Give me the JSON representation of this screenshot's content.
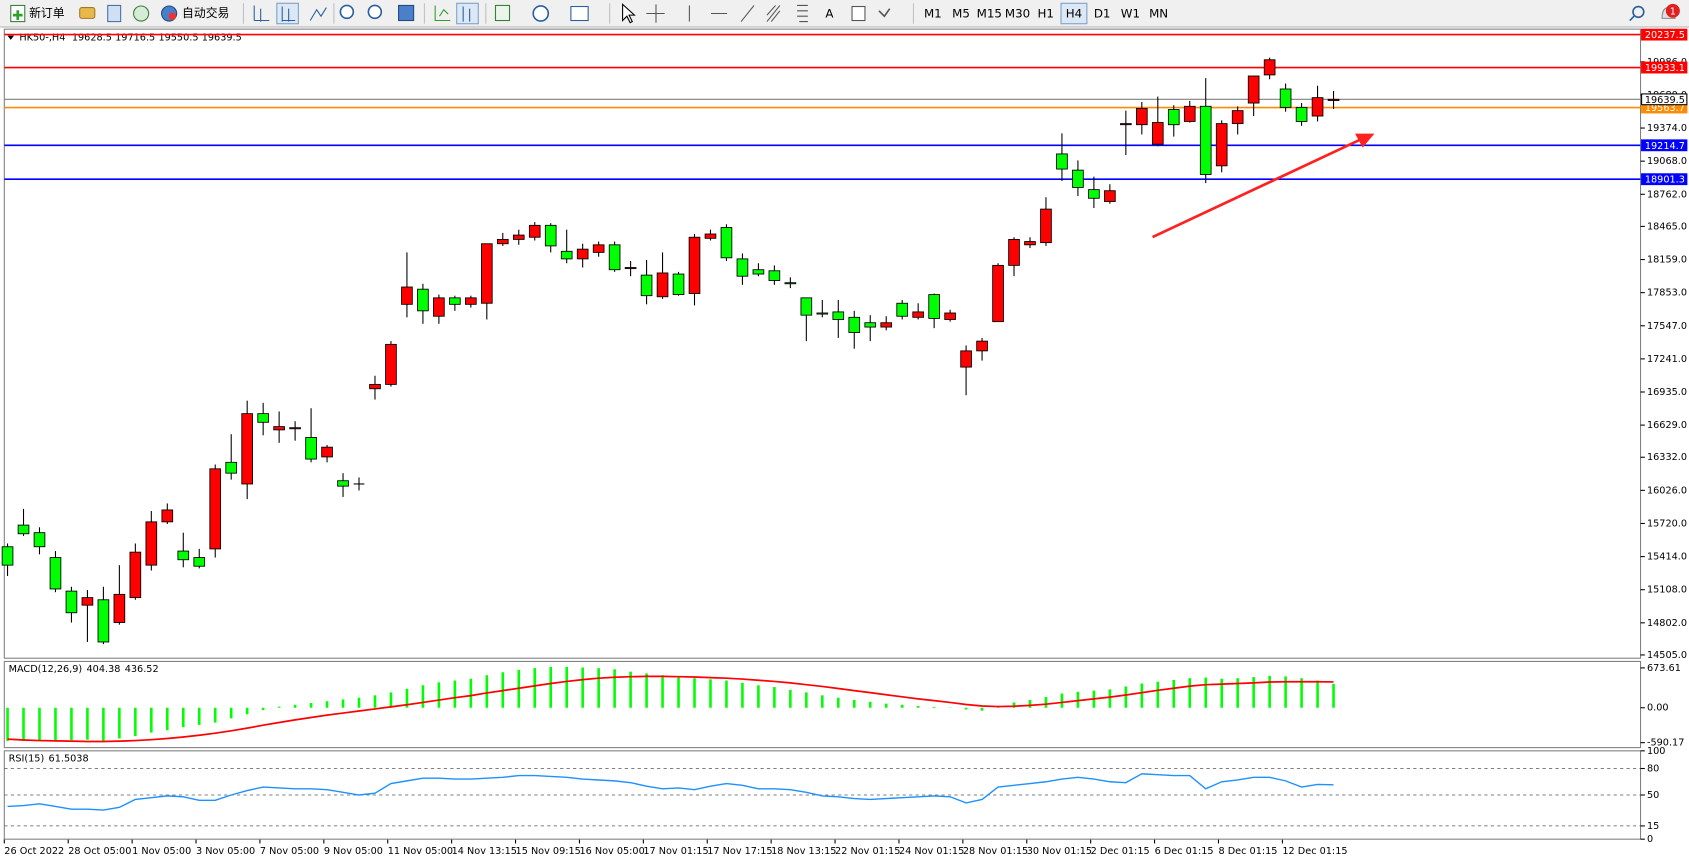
{
  "toolbar": {
    "new_order": "新订单",
    "auto_trading": "自动交易",
    "text_tool": "A",
    "timeframes": [
      "M1",
      "M5",
      "M15",
      "M30",
      "H1",
      "H4",
      "D1",
      "W1",
      "MN"
    ],
    "active_timeframe": "H4",
    "notifications": "1"
  },
  "chart_data": [
    {
      "type": "candlestick",
      "title": "HK50-,H4",
      "categories": [
        "26 Oct 2022",
        null,
        null,
        null,
        "28 Oct 05:00",
        null,
        null,
        null,
        "1 Nov 05:00",
        null,
        null,
        null,
        "3 Nov 05:00",
        null,
        null,
        null,
        "7 Nov 05:00",
        null,
        null,
        null,
        "9 Nov 05:00",
        null,
        null,
        null,
        "11 Nov 05:00",
        null,
        null,
        null,
        "14 Nov 13:15",
        null,
        null,
        null,
        "15 Nov 09:15",
        null,
        null,
        null,
        "16 Nov 05:00",
        null,
        null,
        null,
        "17 Nov 01:15",
        null,
        null,
        null,
        "17 Nov 17:15",
        null,
        null,
        null,
        "18 Nov 13:15",
        null,
        null,
        null,
        "22 Nov 01:15",
        null,
        null,
        null,
        "24 Nov 01:15",
        null,
        null,
        null,
        "28 Nov 01:15",
        null,
        null,
        null,
        "30 Nov 01:15",
        null,
        null,
        null,
        "2 Dec 01:15",
        null,
        null,
        null,
        "6 Dec 01:15",
        null,
        null,
        null,
        "8 Dec 01:15",
        null,
        null,
        null,
        "12 Dec 01:15",
        null,
        null,
        null
      ],
      "open": [
        15505,
        15705,
        15635,
        15405,
        15095,
        14965,
        15015,
        14805,
        15035,
        15335,
        15735,
        15465,
        15405,
        15485,
        16285,
        16085,
        16735,
        16585,
        16595,
        16515,
        16335,
        16115,
        16085,
        16965,
        17005,
        17745,
        17885,
        17635,
        17805,
        17745,
        17755,
        18305,
        18345,
        18365,
        18475,
        18235,
        18165,
        18225,
        18295,
        18075,
        18015,
        17815,
        18025,
        17845,
        18355,
        18455,
        18165,
        18065,
        18055,
        17945,
        17805,
        17665,
        17675,
        17625,
        17575,
        17535,
        17755,
        17625,
        17835,
        17605,
        17165,
        17315,
        17585,
        18105,
        18295,
        18315,
        19135,
        18985,
        18805,
        18695,
        19405,
        19405,
        19225,
        19545,
        19435,
        19575,
        19025,
        19415,
        19605,
        19865,
        19735,
        19565,
        19485,
        19628.5
      ],
      "high": [
        15535,
        15855,
        15685,
        15465,
        15135,
        15105,
        15135,
        15335,
        15535,
        15835,
        15905,
        15635,
        15485,
        16265,
        16545,
        16855,
        16835,
        16755,
        16665,
        16785,
        16445,
        16185,
        16145,
        17085,
        17405,
        18225,
        17935,
        17835,
        17825,
        17825,
        18305,
        18405,
        18435,
        18505,
        18495,
        18435,
        18305,
        18325,
        18325,
        18145,
        18155,
        18225,
        18045,
        18395,
        18435,
        18485,
        18215,
        18125,
        18105,
        17995,
        17805,
        17785,
        17785,
        17685,
        17645,
        17635,
        17785,
        17755,
        17845,
        17695,
        17365,
        17435,
        18125,
        18365,
        18365,
        18735,
        19325,
        19075,
        18925,
        18855,
        19535,
        19615,
        19665,
        19585,
        19625,
        19835,
        19445,
        19575,
        19855,
        20025,
        19785,
        19605,
        19765,
        19716.5
      ],
      "low": [
        15235,
        15605,
        15435,
        15085,
        14805,
        14625,
        14605,
        14785,
        15015,
        15285,
        15715,
        15315,
        15305,
        15405,
        16125,
        15945,
        16535,
        16465,
        16485,
        16285,
        16285,
        15965,
        16025,
        16865,
        16985,
        17625,
        17565,
        17565,
        17685,
        17715,
        17605,
        18285,
        18295,
        18335,
        18225,
        18125,
        18085,
        18185,
        18045,
        18005,
        17745,
        17795,
        17825,
        17735,
        18335,
        18145,
        17925,
        18005,
        17925,
        17895,
        17405,
        17625,
        17435,
        17335,
        17405,
        17505,
        17605,
        17605,
        17525,
        17585,
        16905,
        17225,
        17585,
        18005,
        18265,
        18285,
        18885,
        18745,
        18635,
        18675,
        19125,
        19315,
        19205,
        19295,
        19425,
        18865,
        18965,
        19315,
        19485,
        19825,
        19525,
        19395,
        19435,
        19550.5
      ],
      "close": [
        15335,
        15625,
        15505,
        15115,
        14895,
        15035,
        14625,
        15065,
        15455,
        15735,
        15845,
        15385,
        15325,
        16225,
        16185,
        16735,
        16655,
        16615,
        16605,
        16315,
        16425,
        16065,
        16085,
        17005,
        17375,
        17905,
        17685,
        17805,
        17745,
        17805,
        18305,
        18345,
        18385,
        18475,
        18285,
        18165,
        18255,
        18295,
        18065,
        18085,
        17825,
        18035,
        17835,
        18365,
        18395,
        18175,
        18005,
        18025,
        17965,
        17935,
        17645,
        17655,
        17605,
        17485,
        17535,
        17575,
        17635,
        17675,
        17615,
        17665,
        17315,
        17405,
        18105,
        18345,
        18325,
        18625,
        18995,
        18825,
        18725,
        18795,
        19415,
        19555,
        19425,
        19405,
        19575,
        18945,
        19415,
        19535,
        19855,
        20005,
        19565,
        19435,
        19655,
        19639.5
      ],
      "up_color": "#ff0000",
      "down_color": "#00ff00",
      "current_price_color": "#808080",
      "ylim": [
        14475,
        20288
      ],
      "yticks": [
        {
          "value": 14505,
          "label": "14505.0"
        },
        {
          "value": 14802,
          "label": "14802.0"
        },
        {
          "value": 15108,
          "label": "15108.0"
        },
        {
          "value": 15414,
          "label": "15414.0"
        },
        {
          "value": 15720,
          "label": "15720.0"
        },
        {
          "value": 16026,
          "label": "16026.0"
        },
        {
          "value": 16332,
          "label": "16332.0"
        },
        {
          "value": 16629,
          "label": "16629.0"
        },
        {
          "value": 16935,
          "label": "16935.0"
        },
        {
          "value": 17241,
          "label": "17241.0"
        },
        {
          "value": 17547,
          "label": "17547.0"
        },
        {
          "value": 17853,
          "label": "17853.0"
        },
        {
          "value": 18159,
          "label": "18159.0"
        },
        {
          "value": 18465,
          "label": "18465.0"
        },
        {
          "value": 18762,
          "label": "18762.0"
        },
        {
          "value": 19068,
          "label": "19068.0"
        },
        {
          "value": 19374,
          "label": "19374.0"
        },
        {
          "value": 19680,
          "label": "19680.0"
        },
        {
          "value": 19986,
          "label": "19986.0"
        }
      ],
      "price_lines": [
        {
          "value": 20237.5,
          "color": "#ff0000"
        },
        {
          "value": 19933.1,
          "color": "#ff0000"
        },
        {
          "value": 19563.7,
          "color": "#ff8c00"
        },
        {
          "value": 19214.7,
          "color": "#0000ff"
        },
        {
          "value": 18901.3,
          "color": "#0000ff"
        }
      ]
    },
    {
      "type": "macd",
      "title": "MACD(12,26,9)",
      "values": [
        -560,
        -560,
        -560,
        -555,
        -545,
        -540,
        -560,
        -520,
        -480,
        -420,
        -380,
        -330,
        -290,
        -250,
        -180,
        -110,
        -40,
        20,
        50,
        80,
        110,
        140,
        170,
        210,
        260,
        320,
        380,
        430,
        460,
        490,
        550,
        600,
        640,
        670,
        690,
        690,
        680,
        670,
        650,
        610,
        580,
        550,
        510,
        500,
        480,
        460,
        420,
        380,
        350,
        300,
        260,
        210,
        170,
        130,
        100,
        70,
        50,
        30,
        15,
        5,
        -30,
        -50,
        20,
        90,
        130,
        180,
        240,
        270,
        290,
        310,
        360,
        410,
        440,
        470,
        500,
        510,
        490,
        500,
        520,
        540,
        530,
        500,
        460,
        404.38
      ],
      "signal": [
        -530,
        -545,
        -555,
        -560,
        -565,
        -570,
        -570,
        -565,
        -555,
        -540,
        -520,
        -495,
        -465,
        -430,
        -390,
        -345,
        -295,
        -250,
        -205,
        -165,
        -125,
        -90,
        -55,
        -20,
        15,
        50,
        90,
        130,
        170,
        205,
        250,
        290,
        330,
        370,
        410,
        445,
        475,
        500,
        515,
        525,
        530,
        530,
        525,
        520,
        510,
        500,
        485,
        465,
        445,
        420,
        390,
        360,
        325,
        290,
        255,
        220,
        185,
        150,
        120,
        90,
        55,
        30,
        20,
        25,
        40,
        60,
        90,
        120,
        150,
        180,
        215,
        255,
        295,
        330,
        365,
        390,
        400,
        410,
        420,
        435,
        440,
        440,
        440,
        436.52
      ],
      "color": "#00ff00",
      "signal_color": "#ff0000",
      "ylim": [
        -674,
        783
      ],
      "yticks": [
        673.61,
        {
          "value": 0,
          "label": "0.00"
        },
        -590.17
      ]
    },
    {
      "type": "line",
      "title": "RSI(15)",
      "values": [
        37,
        38,
        40,
        37,
        34,
        34,
        33,
        36,
        45,
        47,
        49,
        48,
        44,
        44,
        50,
        55,
        59,
        58,
        57,
        57,
        56,
        53,
        50,
        52,
        63,
        66,
        69,
        69,
        68,
        68,
        69,
        70,
        72,
        72,
        71,
        70,
        68,
        67,
        66,
        64,
        60,
        57,
        58,
        56,
        60,
        63,
        61,
        57,
        57,
        56,
        53,
        49,
        48,
        46,
        45,
        46,
        47,
        48,
        49,
        48,
        41,
        45,
        59,
        61,
        63,
        65,
        68,
        70,
        68,
        65,
        64,
        74,
        73,
        72,
        72,
        57,
        65,
        67,
        70,
        70,
        66,
        59,
        62,
        61.5038
      ],
      "color": "#1e90ff",
      "ylim": [
        0,
        100
      ],
      "yticks": [
        100,
        80,
        50,
        15,
        0
      ]
    }
  ]
}
